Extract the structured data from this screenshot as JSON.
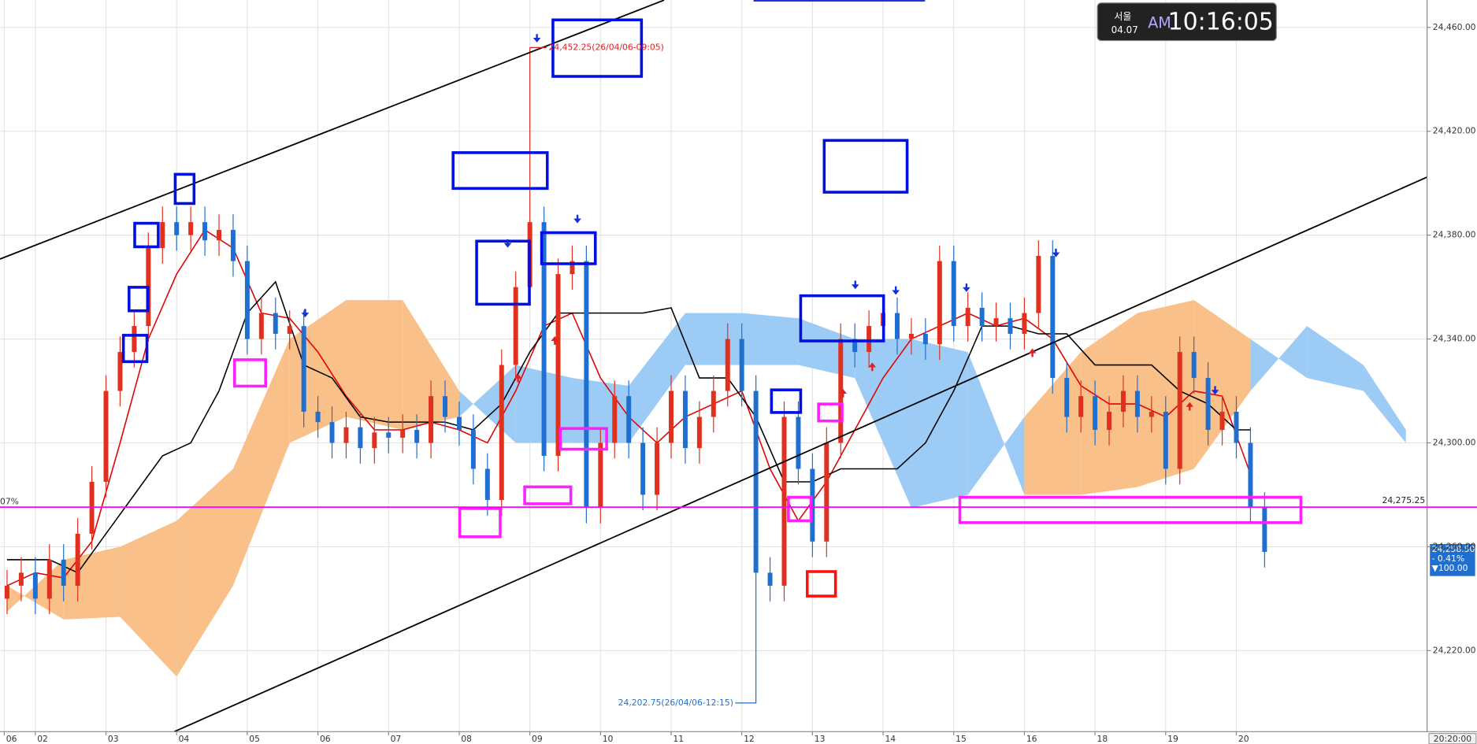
{
  "chart_data": {
    "type": "candlestick",
    "clock": {
      "city": "서울",
      "date": "04.07",
      "ampm": "AM",
      "time": "10:16:05"
    },
    "left_label": "07%",
    "time_label": "20:20:00",
    "xlim": [
      -5,
      197
    ],
    "ylim": [
      24188.8,
      24470.5
    ],
    "grid": true,
    "yticks": [
      {
        "value": 24220,
        "label": "24,220.00"
      },
      {
        "value": 24260,
        "label": "24,260.00"
      },
      {
        "value": 24300,
        "label": "24,300.00"
      },
      {
        "value": 24340,
        "label": "24,340.00"
      },
      {
        "value": 24380,
        "label": "24,380.00"
      },
      {
        "value": 24420,
        "label": "24,420.00"
      },
      {
        "value": 24460,
        "label": "24,460.00"
      }
    ],
    "xticks": [
      {
        "value": -4.4,
        "label": "06"
      },
      {
        "value": 0,
        "label": "02"
      },
      {
        "value": 10,
        "label": "03"
      },
      {
        "value": 20,
        "label": "04"
      },
      {
        "value": 30,
        "label": "05"
      },
      {
        "value": 40,
        "label": "06"
      },
      {
        "value": 50,
        "label": "07"
      },
      {
        "value": 60,
        "label": "08"
      },
      {
        "value": 70,
        "label": "09"
      },
      {
        "value": 80,
        "label": "10"
      },
      {
        "value": 90,
        "label": "11"
      },
      {
        "value": 100,
        "label": "12"
      },
      {
        "value": 110,
        "label": "13"
      },
      {
        "value": 120,
        "label": "14"
      },
      {
        "value": 130,
        "label": "15"
      },
      {
        "value": 140,
        "label": "16"
      },
      {
        "value": 150,
        "label": "18"
      },
      {
        "value": 160,
        "label": "19"
      },
      {
        "value": 170,
        "label": "20"
      }
    ],
    "up_color": "#e0301e",
    "down_color": "#1f6fd1",
    "candles": {
      "x": [
        -4,
        -2,
        0,
        2,
        4,
        6,
        8,
        10,
        12,
        14,
        16,
        18,
        20,
        22,
        24,
        26,
        28,
        30,
        32,
        34,
        36,
        38,
        40,
        42,
        44,
        46,
        48,
        50,
        52,
        54,
        56,
        58,
        60,
        62,
        64,
        66,
        68,
        70,
        72,
        74,
        76,
        78,
        80,
        82,
        84,
        86,
        88,
        90,
        92,
        94,
        96,
        98,
        100,
        102,
        104,
        106,
        108,
        110,
        112,
        114,
        116,
        118,
        120,
        122,
        124,
        126,
        128,
        130,
        132,
        134,
        136,
        138,
        140,
        142,
        144,
        146,
        148,
        150,
        152,
        154,
        156,
        158,
        160,
        162,
        164,
        166,
        168,
        170,
        172,
        174
      ],
      "open": [
        24240,
        24245,
        24250,
        24240,
        24255,
        24245,
        24265,
        24285,
        24320,
        24335,
        24345,
        24375,
        24385,
        24380,
        24385,
        24378,
        24382,
        24370,
        24340,
        24350,
        24342,
        24345,
        24312,
        24308,
        24300,
        24306,
        24298,
        24304,
        24302,
        24305,
        24300,
        24318,
        24310,
        24305,
        24290,
        24278,
        24330,
        24360,
        24385,
        24295,
        24365,
        24370,
        24275,
        24300,
        24318,
        24300,
        24280,
        24300,
        24320,
        24298,
        24310,
        24320,
        24340,
        24320,
        24250,
        24245,
        24310,
        24290,
        24262,
        24300,
        24340,
        24335,
        24345,
        24350,
        24340,
        24342,
        24338,
        24370,
        24345,
        24352,
        24345,
        24348,
        24342,
        24350,
        24372,
        24325,
        24310,
        24318,
        24305,
        24312,
        24320,
        24310,
        24312,
        24290,
        24335,
        24325,
        24305,
        24312,
        24300,
        24275
      ],
      "high": [
        24251,
        24256,
        24256,
        24261,
        24261,
        24271,
        24291,
        24326,
        24341,
        24351,
        24381,
        24391,
        24391,
        24391,
        24391,
        24388,
        24388,
        24376,
        24356,
        24356,
        24351,
        24351,
        24318,
        24314,
        24312,
        24312,
        24310,
        24310,
        24311,
        24311,
        24324,
        24324,
        24316,
        24311,
        24296,
        24336,
        24366,
        24452.25,
        24391,
        24371,
        24376,
        24376,
        24306,
        24324,
        24324,
        24306,
        24306,
        24326,
        24326,
        24316,
        24326,
        24346,
        24346,
        24326,
        24256,
        24316,
        24316,
        24296,
        24306,
        24346,
        24346,
        24351,
        24356,
        24356,
        24348,
        24348,
        24376,
        24376,
        24358,
        24358,
        24354,
        24354,
        24356,
        24378,
        24378,
        24331,
        24324,
        24324,
        24318,
        24326,
        24326,
        24318,
        24318,
        24341,
        24341,
        24331,
        24318,
        24318,
        24306,
        24281
      ],
      "low": [
        24234,
        24239,
        24234,
        24234,
        24239,
        24239,
        24259,
        24279,
        24314,
        24329,
        24339,
        24369,
        24374,
        24374,
        24372,
        24372,
        24364,
        24334,
        24334,
        24336,
        24336,
        24306,
        24302,
        24294,
        24294,
        24292,
        24292,
        24296,
        24296,
        24294,
        24294,
        24304,
        24299,
        24284,
        24272,
        24272,
        24324,
        24354,
        24289,
        24289,
        24359,
        24269,
        24269,
        24294,
        24294,
        24274,
        24274,
        24294,
        24292,
        24292,
        24304,
        24314,
        24314,
        24202.75,
        24239,
        24239,
        24284,
        24256,
        24256,
        24294,
        24329,
        24329,
        24339,
        24334,
        24334,
        24332,
        24332,
        24339,
        24339,
        24339,
        24339,
        24336,
        24336,
        24344,
        24319,
        24304,
        24304,
        24299,
        24299,
        24306,
        24304,
        24304,
        24284,
        24284,
        24319,
        24299,
        24299,
        24294,
        24269,
        24252
      ],
      "close": [
        24245,
        24250,
        24240,
        24255,
        24245,
        24265,
        24285,
        24320,
        24335,
        24345,
        24375,
        24385,
        24380,
        24385,
        24378,
        24382,
        24370,
        24340,
        24350,
        24342,
        24345,
        24312,
        24308,
        24300,
        24306,
        24298,
        24304,
        24302,
        24305,
        24300,
        24318,
        24310,
        24305,
        24290,
        24278,
        24330,
        24360,
        24385,
        24295,
        24365,
        24370,
        24275,
        24300,
        24318,
        24300,
        24280,
        24300,
        24320,
        24298,
        24310,
        24320,
        24340,
        24320,
        24250,
        24245,
        24310,
        24290,
        24262,
        24300,
        24340,
        24335,
        24345,
        24350,
        24340,
        24342,
        24338,
        24370,
        24345,
        24352,
        24345,
        24348,
        24342,
        24350,
        24372,
        24325,
        24310,
        24318,
        24305,
        24312,
        24320,
        24310,
        24312,
        24290,
        24335,
        24325,
        24305,
        24312,
        24300,
        24275,
        24258
      ]
    },
    "overlays": [
      {
        "color": "#e00000",
        "x": [
          -4,
          0,
          4,
          8,
          12,
          16,
          20,
          24,
          28,
          32,
          36,
          40,
          44,
          48,
          52,
          56,
          60,
          64,
          68,
          72,
          76,
          80,
          84,
          88,
          92,
          96,
          100,
          104,
          108,
          112,
          116,
          120,
          124,
          128,
          132,
          136,
          140,
          144,
          148,
          152,
          156,
          160,
          164,
          168,
          172
        ],
        "values": [
          24245,
          24250,
          24248,
          24262,
          24300,
          24340,
          24365,
          24382,
          24375,
          24350,
          24348,
          24335,
          24318,
          24305,
          24305,
          24308,
          24305,
          24300,
          24320,
          24345,
          24350,
          24325,
          24310,
          24300,
          24310,
          24315,
          24320,
          24290,
          24270,
          24285,
          24305,
          24325,
          24340,
          24345,
          24350,
          24345,
          24348,
          24340,
          24322,
          24315,
          24315,
          24310,
          24320,
          24318,
          24288
        ]
      },
      {
        "color": "#000000",
        "x": [
          -4,
          2,
          6,
          10,
          14,
          18,
          22,
          26,
          30,
          34,
          38,
          42,
          46,
          50,
          54,
          58,
          62,
          66,
          70,
          74,
          78,
          82,
          86,
          90,
          94,
          98,
          102,
          106,
          110,
          114,
          118,
          122,
          126,
          130,
          134,
          138,
          142,
          146,
          150,
          154,
          158,
          162,
          166,
          170,
          172
        ],
        "values": [
          24255,
          24255,
          24250,
          24265,
          24280,
          24295,
          24300,
          24320,
          24350,
          24362,
          24330,
          24325,
          24310,
          24308,
          24308,
          24308,
          24305,
          24315,
          24335,
          24350,
          24350,
          24350,
          24350,
          24352,
          24325,
          24325,
          24310,
          24285,
          24285,
          24290,
          24290,
          24290,
          24300,
          24320,
          24345,
          24345,
          24342,
          24342,
          24330,
          24330,
          24330,
          24320,
          24315,
          24305,
          24305
        ]
      }
    ],
    "cloud": {
      "bull_color": "#9ccbf5",
      "bear_color": "#f9c089",
      "x": [
        -4,
        4,
        12,
        20,
        28,
        36,
        44,
        52,
        60,
        68,
        76,
        84,
        92,
        100,
        108,
        116,
        124,
        132,
        140,
        148,
        156,
        164,
        172,
        180,
        188,
        194
      ],
      "span_a": [
        24245,
        24232,
        24233,
        24210,
        24245,
        24300,
        24310,
        24305,
        24310,
        24330,
        24325,
        24322,
        24350,
        24350,
        24348,
        24340,
        24340,
        24335,
        24280,
        24280,
        24283,
        24290,
        24320,
        24345,
        24330,
        24305
      ],
      "span_b": [
        24235,
        24255,
        24260,
        24270,
        24290,
        24340,
        24355,
        24355,
        24320,
        24300,
        24300,
        24300,
        24330,
        24330,
        24330,
        24325,
        24275,
        24280,
        24310,
        24335,
        24350,
        24355,
        24340,
        24325,
        24320,
        24300
      ]
    },
    "reference_line": {
      "value": 24275.25,
      "label": "24,275.25",
      "color": "#ff00ff"
    },
    "last_price": {
      "value": 24258.5,
      "label": "24,258.50",
      "change_pct": "- 0.41%",
      "change": "▼100.00"
    },
    "high_note": {
      "x": 70,
      "value": 24452.25,
      "label": "24,452.25(26/04/06-09:05)"
    },
    "low_note": {
      "x": 102,
      "value": 24202.75,
      "label": "24,202.75(26/04/06-12:15)"
    }
  }
}
